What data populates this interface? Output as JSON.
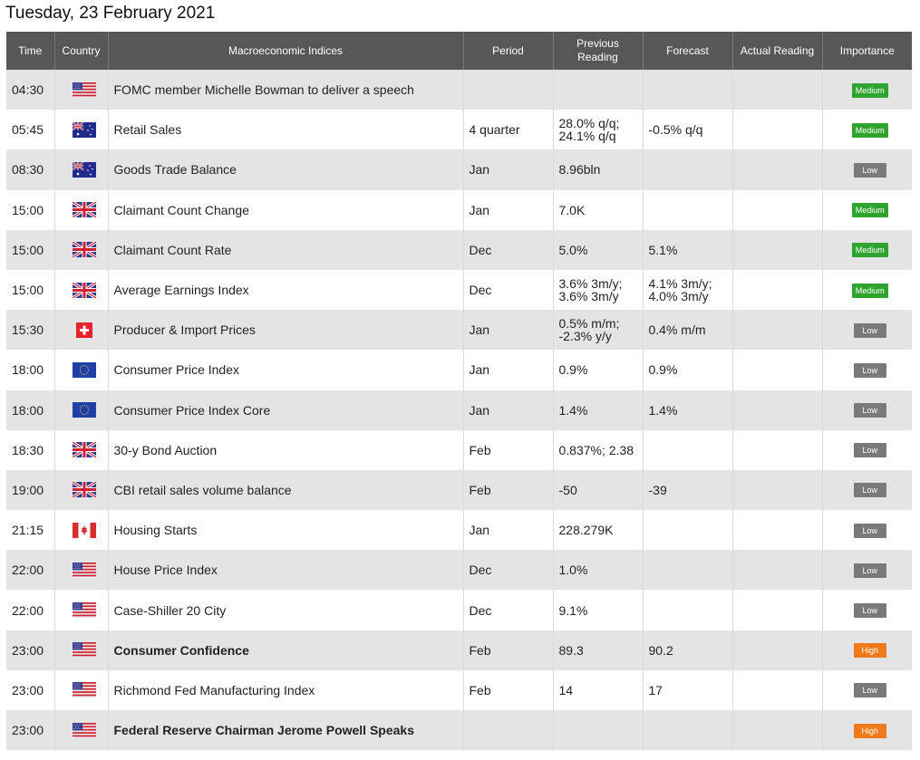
{
  "page": {
    "date_title": "Tuesday, 23 February 2021"
  },
  "columns": {
    "time": "Time",
    "country": "Country",
    "indices": "Macroeconomic Indices",
    "period": "Period",
    "previous": "Previous Reading",
    "forecast": "Forecast",
    "actual": "Actual Reading",
    "importance": "Importance"
  },
  "colors": {
    "medium": "#2ea42e",
    "low": "#7a7a7a",
    "high": "#f07a1a",
    "header": "#575757"
  },
  "events": [
    {
      "time": "04:30",
      "flag": "us-flag-icon",
      "name": "FOMC member Michelle Bowman to deliver a speech",
      "bold": false,
      "period": "",
      "previous": "",
      "forecast": "",
      "actual": "",
      "importance": "Medium",
      "level": "medium"
    },
    {
      "time": "05:45",
      "flag": "au-flag-icon",
      "name": "Retail Sales",
      "bold": false,
      "period": "4 quarter",
      "previous": "28.0% q/q; 24.1% q/q",
      "forecast": "-0.5% q/q",
      "actual": "",
      "importance": "Medium",
      "level": "medium"
    },
    {
      "time": "08:30",
      "flag": "au-flag-icon",
      "name": "Goods Trade Balance",
      "bold": false,
      "period": "Jan",
      "previous": "8.96bln",
      "forecast": "",
      "actual": "",
      "importance": "Low",
      "level": "low"
    },
    {
      "time": "15:00",
      "flag": "uk-flag-icon",
      "name": "Claimant Count Change",
      "bold": false,
      "period": "Jan",
      "previous": "7.0K",
      "forecast": "",
      "actual": "",
      "importance": "Medium",
      "level": "medium"
    },
    {
      "time": "15:00",
      "flag": "uk-flag-icon",
      "name": "Claimant Count Rate",
      "bold": false,
      "period": "Dec",
      "previous": "5.0%",
      "forecast": "5.1%",
      "actual": "",
      "importance": "Medium",
      "level": "medium"
    },
    {
      "time": "15:00",
      "flag": "uk-flag-icon",
      "name": "Average Earnings Index",
      "bold": false,
      "period": "Dec",
      "previous": "3.6% 3m/y; 3.6% 3m/y",
      "forecast": "4.1% 3m/y; 4.0% 3m/y",
      "actual": "",
      "importance": "Medium",
      "level": "medium"
    },
    {
      "time": "15:30",
      "flag": "ch-flag-icon",
      "name": "Producer & Import Prices",
      "bold": false,
      "period": "Jan",
      "previous": "0.5% m/m; -2.3% y/y",
      "forecast": "0.4% m/m",
      "actual": "",
      "importance": "Low",
      "level": "low"
    },
    {
      "time": "18:00",
      "flag": "eu-flag-icon",
      "name": "Consumer Price Index",
      "bold": false,
      "period": "Jan",
      "previous": "0.9%",
      "forecast": "0.9%",
      "actual": "",
      "importance": "Low",
      "level": "low"
    },
    {
      "time": "18:00",
      "flag": "eu-flag-icon",
      "name": "Consumer Price Index Core",
      "bold": false,
      "period": "Jan",
      "previous": "1.4%",
      "forecast": "1.4%",
      "actual": "",
      "importance": "Low",
      "level": "low"
    },
    {
      "time": "18:30",
      "flag": "uk-flag-icon",
      "name": "30-y Bond Auction",
      "bold": false,
      "period": "Feb",
      "previous": "0.837%; 2.38",
      "forecast": "",
      "actual": "",
      "importance": "Low",
      "level": "low"
    },
    {
      "time": "19:00",
      "flag": "uk-flag-icon",
      "name": "CBI retail sales volume balance",
      "bold": false,
      "period": "Feb",
      "previous": "-50",
      "forecast": "-39",
      "actual": "",
      "importance": "Low",
      "level": "low"
    },
    {
      "time": "21:15",
      "flag": "ca-flag-icon",
      "name": "Housing Starts",
      "bold": false,
      "period": "Jan",
      "previous": "228.279K",
      "forecast": "",
      "actual": "",
      "importance": "Low",
      "level": "low"
    },
    {
      "time": "22:00",
      "flag": "us-flag-icon",
      "name": "House Price Index",
      "bold": false,
      "period": "Dec",
      "previous": "1.0%",
      "forecast": "",
      "actual": "",
      "importance": "Low",
      "level": "low"
    },
    {
      "time": "22:00",
      "flag": "us-flag-icon",
      "name": "Case-Shiller 20 City",
      "bold": false,
      "period": "Dec",
      "previous": "9.1%",
      "forecast": "",
      "actual": "",
      "importance": "Low",
      "level": "low"
    },
    {
      "time": "23:00",
      "flag": "us-flag-icon",
      "name": "Consumer Confidence",
      "bold": true,
      "period": "Feb",
      "previous": "89.3",
      "forecast": "90.2",
      "actual": "",
      "importance": "High",
      "level": "high"
    },
    {
      "time": "23:00",
      "flag": "us-flag-icon",
      "name": "Richmond Fed Manufacturing Index",
      "bold": false,
      "period": "Feb",
      "previous": "14",
      "forecast": "17",
      "actual": "",
      "importance": "Low",
      "level": "low"
    },
    {
      "time": "23:00",
      "flag": "us-flag-icon",
      "name": "Federal Reserve Chairman Jerome Powell Speaks",
      "bold": true,
      "period": "",
      "previous": "",
      "forecast": "",
      "actual": "",
      "importance": "High",
      "level": "high"
    }
  ]
}
